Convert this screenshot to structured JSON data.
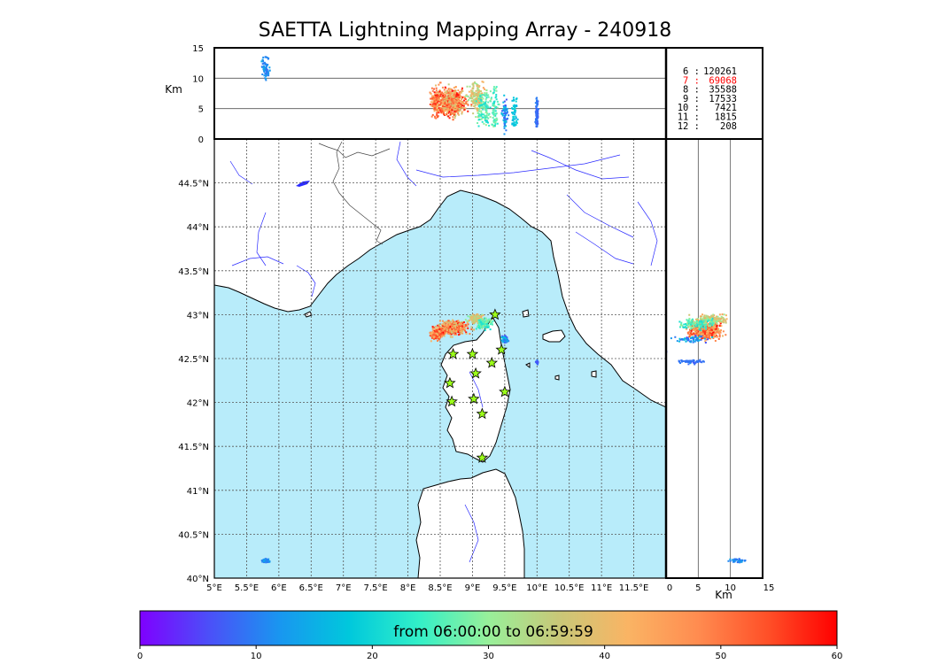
{
  "title": "SAETTA Lightning Mapping Array - 240918",
  "colorbar": {
    "label": "from 06:00:00 to 06:59:59",
    "ticks": [
      "0",
      "10",
      "20",
      "30",
      "40",
      "50",
      "60"
    ],
    "range": [
      0,
      60
    ],
    "colors": [
      "#7f00ff",
      "#4b50f8",
      "#1996f0",
      "#00c8dc",
      "#32f0c8",
      "#98f09a",
      "#c8c878",
      "#fab464",
      "#ff8c50",
      "#ff5028",
      "#ff0000"
    ]
  },
  "map": {
    "lon_range": [
      5,
      12
    ],
    "lat_range": [
      40,
      45
    ],
    "lon_ticks": [
      "5°E",
      "5.5°E",
      "6°E",
      "6.5°E",
      "7°E",
      "7.5°E",
      "8°E",
      "8.5°E",
      "9°E",
      "9.5°E",
      "10°E",
      "10.5°E",
      "11°E",
      "11.5°E"
    ],
    "lat_ticks": [
      "40°N",
      "40.5°N",
      "41°N",
      "41.5°N",
      "42°N",
      "42.5°N",
      "43°N",
      "43.5°N",
      "44°N",
      "44.5°N"
    ],
    "sea_color": "#b8ecfa",
    "land_color": "#ffffff",
    "river_color": "#2a2aff",
    "stations": [
      [
        9.35,
        43.0
      ],
      [
        9.45,
        42.6
      ],
      [
        9.0,
        42.55
      ],
      [
        8.7,
        42.55
      ],
      [
        9.3,
        42.45
      ],
      [
        9.05,
        42.33
      ],
      [
        8.65,
        42.22
      ],
      [
        9.5,
        42.12
      ],
      [
        9.02,
        42.04
      ],
      [
        8.68,
        42.01
      ],
      [
        9.15,
        41.87
      ],
      [
        9.15,
        41.37
      ]
    ]
  },
  "altitude": {
    "label": "Km",
    "range": [
      0,
      15
    ],
    "ticks": [
      "0",
      "5",
      "10",
      "15"
    ]
  },
  "counts": [
    {
      "label": "6 :",
      "value": "120261",
      "color": "#000000"
    },
    {
      "label": "7 :",
      "value": "69068",
      "color": "#ff0000"
    },
    {
      "label": "8 :",
      "value": "35588",
      "color": "#000000"
    },
    {
      "label": "9 :",
      "value": "17533",
      "color": "#000000"
    },
    {
      "label": "10 :",
      "value": "7421",
      "color": "#000000"
    },
    {
      "label": "11 :",
      "value": "1815",
      "color": "#000000"
    },
    {
      "label": "12 :",
      "value": "208",
      "color": "#000000"
    }
  ]
}
